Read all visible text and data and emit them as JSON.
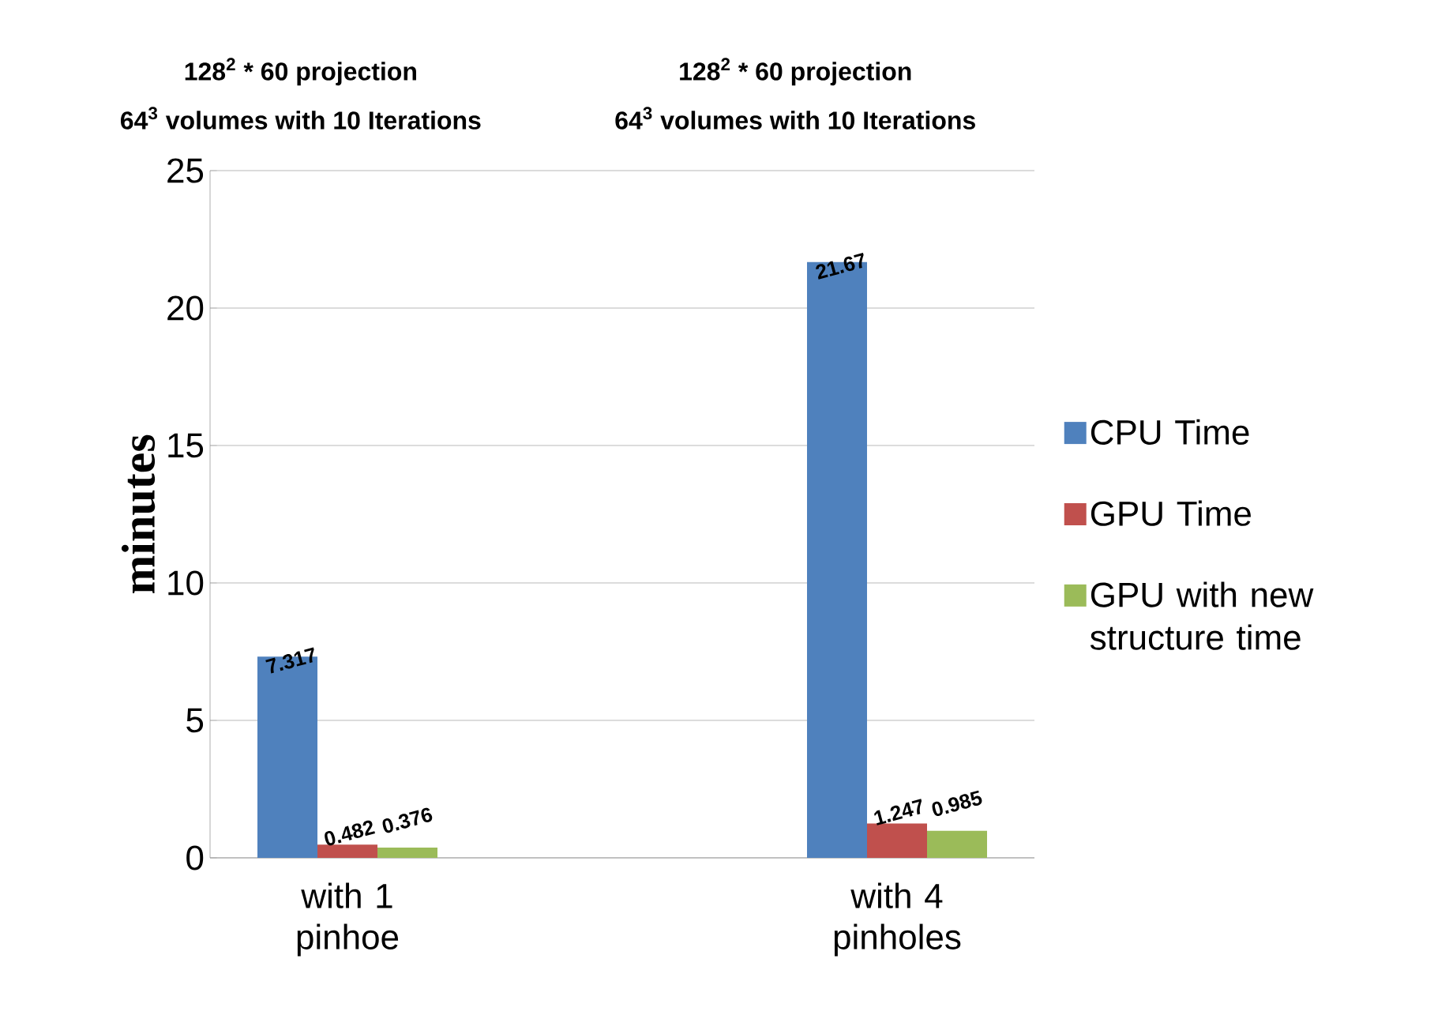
{
  "chart_data": {
    "type": "bar",
    "categories": [
      "with 1 pinhoe",
      "with 4 pinholes"
    ],
    "series": [
      {
        "name": "CPU Time",
        "color": "#4f81bd",
        "values": [
          7.317,
          21.67
        ]
      },
      {
        "name": "GPU Time",
        "color": "#c0504d",
        "values": [
          0.482,
          1.247
        ]
      },
      {
        "name": "GPU with new structure time",
        "color": "#9bbb59",
        "values": [
          0.376,
          0.985
        ]
      }
    ],
    "ylabel": "minutes",
    "ylim": [
      0,
      25
    ],
    "yticks": [
      0,
      5,
      10,
      15,
      20,
      25
    ],
    "grid": "y",
    "legend": "right",
    "data_labels": true,
    "annotations": [
      "128$^{2}$ * 60 projection",
      "64$^{3}$ volumes with 10 Iterations",
      "128$^{2}$ * 60 projection",
      "64$^{3}$ volumes with 10 Iterations"
    ]
  }
}
